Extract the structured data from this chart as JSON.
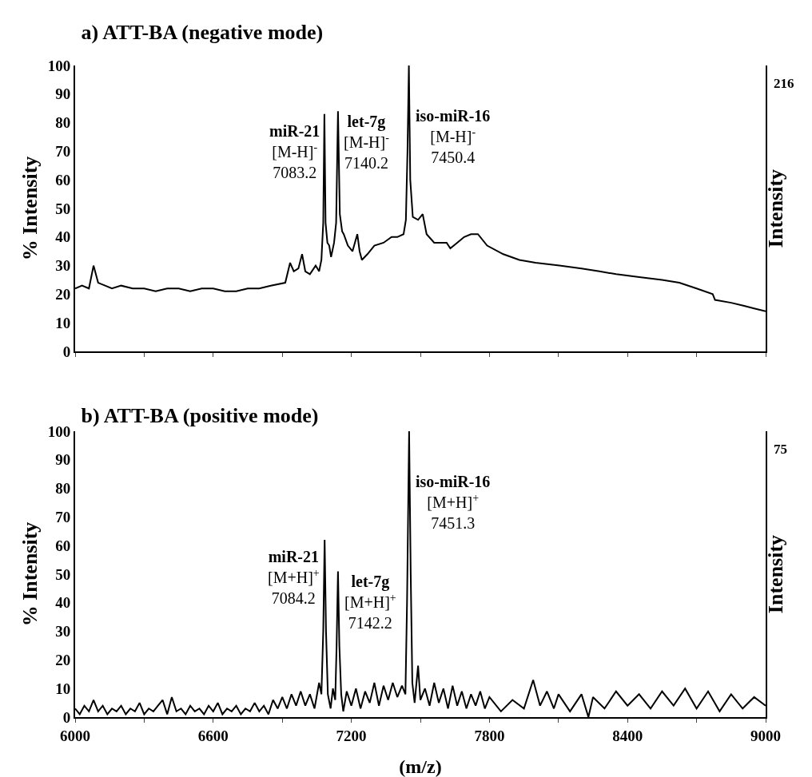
{
  "chart_data": [
    {
      "type": "line",
      "title": "a) ATT-BA (negative mode)",
      "ylabel": "% Intensity",
      "y2label": "Intensity",
      "tick_labels": "y",
      "x": [
        6000,
        6030,
        6060,
        6080,
        6100,
        6130,
        6160,
        6200,
        6250,
        6300,
        6350,
        6400,
        6450,
        6500,
        6550,
        6600,
        6650,
        6700,
        6750,
        6800,
        6850,
        6913,
        6934,
        6950,
        6970,
        6986,
        7000,
        7020,
        7045,
        7060,
        7070,
        7078,
        7083,
        7088,
        7096,
        7104,
        7112,
        7125,
        7134,
        7142,
        7150,
        7160,
        7167,
        7185,
        7205,
        7226,
        7236,
        7246,
        7270,
        7300,
        7340,
        7375,
        7400,
        7427,
        7437,
        7444,
        7450,
        7456,
        7467,
        7490,
        7510,
        7527,
        7560,
        7614,
        7630,
        7660,
        7690,
        7720,
        7750,
        7790,
        7860,
        7930,
        8000,
        8104,
        8200,
        8278,
        8350,
        8451,
        8550,
        8625,
        8700,
        8770,
        8780,
        8850,
        8903,
        8950,
        9000
      ],
      "series": [
        {
          "color": "#000000",
          "values": [
            22,
            23,
            22,
            30,
            24,
            23,
            22,
            23,
            22,
            22,
            21,
            22,
            22,
            21,
            22,
            22,
            21,
            21,
            22,
            22,
            23,
            24,
            31,
            28,
            29,
            34,
            28,
            27,
            30,
            28,
            32,
            45,
            83,
            45,
            38,
            37,
            33,
            38,
            45,
            84,
            48,
            42,
            41,
            37,
            35,
            41,
            35,
            32,
            34,
            37,
            38,
            40,
            40,
            41,
            46,
            70,
            100,
            60,
            47,
            46,
            48,
            41,
            38,
            38,
            36,
            38,
            40,
            41,
            41,
            37,
            34,
            32,
            31,
            30,
            29,
            28,
            27,
            26,
            25,
            24,
            22,
            20,
            18,
            17,
            16,
            15,
            14
          ]
        }
      ],
      "xlim": [
        6000,
        9000
      ],
      "xticks": [
        6000,
        {
          "value": 6300,
          "label": null
        },
        6600,
        {
          "value": 6900,
          "label": null
        },
        7200,
        {
          "value": 7500,
          "label": null
        },
        7800,
        {
          "value": 8100,
          "label": null
        },
        8400,
        {
          "value": 8700,
          "label": null
        },
        9000
      ],
      "ylim": [
        0,
        100
      ],
      "yticks": [
        0,
        10,
        20,
        30,
        40,
        50,
        60,
        70,
        80,
        90,
        100
      ],
      "annotations": [
        "216",
        {
          "text": "miR-21\n[M-H]$^{-}$\n7083.2",
          "x": 7083.2,
          "y": 83
        },
        {
          "text": "let-7g\n[M-H]$^{-}$\n7140.2",
          "x": 7140.2,
          "y": 84
        },
        {
          "text": "iso-miR-16\n[M-H]$^{-}$\n7450.4",
          "x": 7450.4,
          "y": 100
        }
      ]
    },
    {
      "type": "line",
      "title": "b) ATT-BA (positive mode)",
      "xlabel": "(m/z)",
      "ylabel": "% Intensity",
      "y2label": "Intensity",
      "x": [
        6000,
        6020,
        6040,
        6060,
        6080,
        6100,
        6120,
        6140,
        6160,
        6180,
        6200,
        6220,
        6240,
        6260,
        6280,
        6300,
        6320,
        6340,
        6360,
        6380,
        6400,
        6420,
        6440,
        6460,
        6480,
        6500,
        6520,
        6540,
        6560,
        6580,
        6600,
        6620,
        6640,
        6660,
        6680,
        6700,
        6720,
        6740,
        6760,
        6780,
        6800,
        6820,
        6840,
        6860,
        6880,
        6900,
        6920,
        6940,
        6960,
        6980,
        7000,
        7020,
        7040,
        7060,
        7070,
        7078,
        7084,
        7090,
        7098,
        7110,
        7120,
        7130,
        7136,
        7142,
        7148,
        7156,
        7165,
        7180,
        7200,
        7220,
        7240,
        7260,
        7280,
        7300,
        7320,
        7340,
        7360,
        7380,
        7400,
        7420,
        7435,
        7442,
        7451,
        7458,
        7465,
        7475,
        7490,
        7500,
        7520,
        7540,
        7560,
        7580,
        7600,
        7620,
        7640,
        7660,
        7680,
        7700,
        7720,
        7740,
        7760,
        7780,
        7800,
        7850,
        7900,
        7950,
        7990,
        8020,
        8050,
        8080,
        8100,
        8150,
        8200,
        8230,
        8250,
        8300,
        8350,
        8400,
        8450,
        8500,
        8550,
        8600,
        8650,
        8700,
        8750,
        8800,
        8850,
        8900,
        8950,
        9000
      ],
      "series": [
        {
          "color": "#000000",
          "values": [
            3,
            1,
            4,
            2,
            6,
            2,
            4,
            1,
            3,
            2,
            4,
            1,
            3,
            2,
            5,
            1,
            3,
            2,
            4,
            6,
            1,
            7,
            2,
            3,
            1,
            4,
            2,
            3,
            1,
            4,
            2,
            5,
            1,
            3,
            2,
            4,
            1,
            3,
            2,
            5,
            2,
            4,
            1,
            6,
            3,
            7,
            3,
            8,
            4,
            9,
            4,
            8,
            3,
            12,
            8,
            30,
            62,
            30,
            8,
            3,
            10,
            6,
            25,
            51,
            25,
            8,
            2,
            9,
            4,
            10,
            3,
            9,
            5,
            12,
            4,
            11,
            6,
            12,
            7,
            11,
            8,
            40,
            100,
            50,
            12,
            5,
            18,
            6,
            10,
            4,
            12,
            5,
            10,
            3,
            11,
            4,
            9,
            3,
            8,
            4,
            9,
            3,
            7,
            2,
            6,
            3,
            13,
            4,
            9,
            3,
            8,
            2,
            8,
            0,
            7,
            3,
            9,
            4,
            8,
            3,
            9,
            4,
            10,
            3,
            9,
            2,
            8,
            3,
            7,
            4
          ]
        }
      ],
      "xlim": [
        6000,
        9000
      ],
      "xticks": [
        6000,
        {
          "value": 6300,
          "label": null
        },
        6600,
        {
          "value": 6900,
          "label": null
        },
        7200,
        {
          "value": 7500,
          "label": null
        },
        7800,
        {
          "value": 8100,
          "label": null
        },
        8400,
        {
          "value": 8700,
          "label": null
        },
        9000
      ],
      "ylim": [
        0,
        100
      ],
      "yticks": [
        0,
        10,
        20,
        30,
        40,
        50,
        60,
        70,
        80,
        90,
        100
      ],
      "annotations": [
        "75",
        {
          "text": "miR-21\n[M+H]$^{+}$\n7084.2",
          "x": 7084.2,
          "y": 62
        },
        {
          "text": "let-7g\n[M+H]$^{+}$\n7142.2",
          "x": 7142.2,
          "y": 51
        },
        {
          "text": "iso-miR-16\n[M+H]$^{+}$\n7451.3",
          "x": 7451.3,
          "y": 100
        }
      ]
    }
  ]
}
